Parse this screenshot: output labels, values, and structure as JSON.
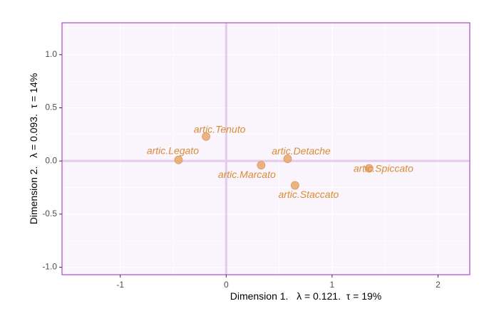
{
  "chart_data": {
    "type": "scatter",
    "title": "",
    "xlabel": "Dimension 1.   λ = 0.121.  τ = 19%",
    "ylabel": "Dimension 2.   λ = 0.093.  τ = 14%",
    "xlim": [
      -1.55,
      2.3
    ],
    "ylim": [
      -1.07,
      1.3
    ],
    "x_ticks": [
      -1,
      0,
      1,
      2
    ],
    "x_tick_labels": [
      "-1",
      "0",
      "1",
      "2"
    ],
    "y_ticks": [
      -1.0,
      -0.5,
      0.0,
      0.5,
      1.0
    ],
    "y_tick_labels": [
      "-1.0",
      "-0.5",
      "0.0",
      "0.5",
      "1.0"
    ],
    "grid": true,
    "reference_lines": {
      "x": 0,
      "y": 0
    },
    "points": [
      {
        "label": "artic.Tenuto",
        "x": -0.19,
        "y": 0.23
      },
      {
        "label": "artic.Legato",
        "x": -0.45,
        "y": 0.01
      },
      {
        "label": "artic.Marcato",
        "x": 0.33,
        "y": -0.04
      },
      {
        "label": "artic.Detache",
        "x": 0.58,
        "y": 0.02
      },
      {
        "label": "artic.Staccato",
        "x": 0.65,
        "y": -0.23
      },
      {
        "label": "artic.Spiccato",
        "x": 1.35,
        "y": -0.07
      }
    ],
    "colors": {
      "point_fill": "#e8ac72",
      "point_stroke": "#d99a5c",
      "label": "#d98c34",
      "panel_bg": "#faf5fd",
      "panel_border": "#a64dc7",
      "grid": "#ffffff",
      "ref_line": "#e3cce9",
      "axis_text": "#4d4d4d",
      "axis_title": "#000000"
    }
  }
}
